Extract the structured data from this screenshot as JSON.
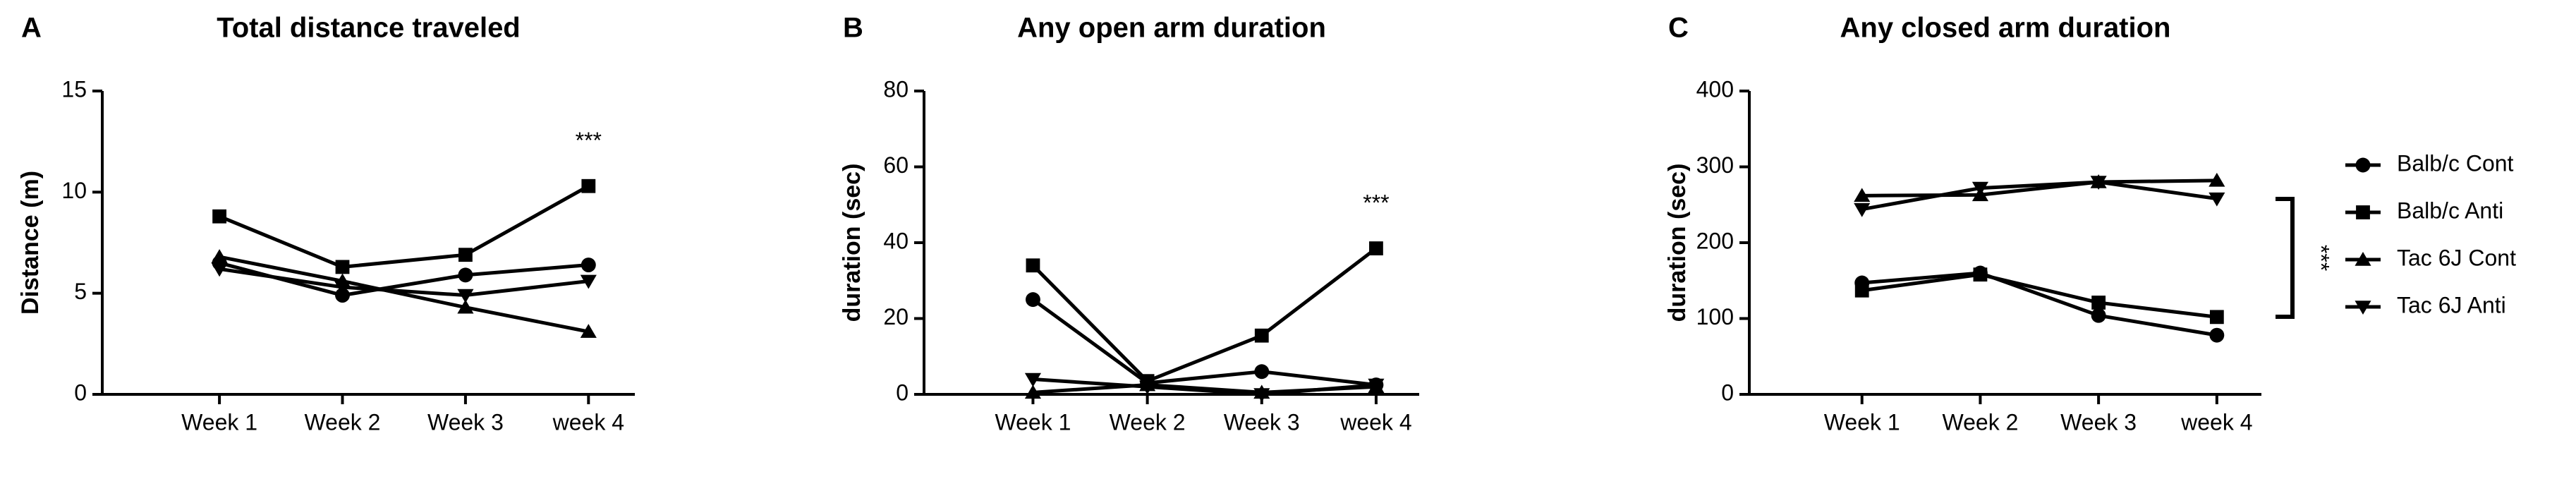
{
  "chart_data": [
    {
      "type": "line",
      "panel": "A",
      "title": "Total distance traveled",
      "y_label": "Distance (m)",
      "categories": [
        "Week 1",
        "Week 2",
        "Week 3",
        "week 4"
      ],
      "ylim": [
        0,
        15
      ],
      "yticks": [
        0,
        5,
        10,
        15
      ],
      "annotation": "***",
      "series": [
        {
          "name": "Balb/c Cont",
          "color": "#000000",
          "marker": "circle",
          "values": [
            6.5,
            4.9,
            5.9,
            6.4
          ]
        },
        {
          "name": "Balb/c Anti",
          "color": "#000000",
          "marker": "square",
          "values": [
            8.8,
            6.3,
            6.9,
            10.3
          ]
        },
        {
          "name": "Tac 6J Cont",
          "color": "#000000",
          "marker": "triangle-up",
          "values": [
            6.8,
            5.6,
            4.3,
            3.1
          ]
        },
        {
          "name": "Tac 6J Anti",
          "color": "#000000",
          "marker": "triangle-down",
          "values": [
            6.2,
            5.3,
            4.9,
            5.6
          ]
        }
      ]
    },
    {
      "type": "line",
      "panel": "B",
      "title": "Any open arm duration",
      "y_label": "duration (sec)",
      "categories": [
        "Week 1",
        "Week 2",
        "Week 3",
        "week 4"
      ],
      "ylim": [
        0,
        80
      ],
      "yticks": [
        0,
        20,
        40,
        60,
        80
      ],
      "annotation": "***",
      "series": [
        {
          "name": "Balb/c Cont",
          "color": "#000000",
          "marker": "circle",
          "values": [
            25,
            3,
            6,
            2.5
          ]
        },
        {
          "name": "Balb/c Anti",
          "color": "#000000",
          "marker": "square",
          "values": [
            34,
            3.5,
            15.5,
            38.5
          ]
        },
        {
          "name": "Tac 6J Cont",
          "color": "#000000",
          "marker": "triangle-up",
          "values": [
            0.5,
            2.5,
            0.5,
            2
          ]
        },
        {
          "name": "Tac 6J Anti",
          "color": "#000000",
          "marker": "triangle-down",
          "values": [
            4,
            2,
            0,
            2.5
          ]
        }
      ]
    },
    {
      "type": "line",
      "panel": "C",
      "title": "Any closed arm duration",
      "y_label": "duration (sec)",
      "categories": [
        "Week 1",
        "Week 2",
        "Week 3",
        "week 4"
      ],
      "ylim": [
        0,
        400
      ],
      "yticks": [
        0,
        100,
        200,
        300,
        400
      ],
      "annotation": "***",
      "series": [
        {
          "name": "Balb/c Cont",
          "color": "#000000",
          "marker": "circle",
          "values": [
            147,
            160,
            104,
            78
          ]
        },
        {
          "name": "Balb/c Anti",
          "color": "#000000",
          "marker": "square",
          "values": [
            137,
            158,
            121,
            102
          ]
        },
        {
          "name": "Tac 6J Cont",
          "color": "#000000",
          "marker": "triangle-up",
          "values": [
            262,
            263,
            280,
            282
          ]
        },
        {
          "name": "Tac 6J Anti",
          "color": "#000000",
          "marker": "triangle-down",
          "values": [
            244,
            272,
            280,
            258
          ]
        }
      ]
    }
  ]
}
